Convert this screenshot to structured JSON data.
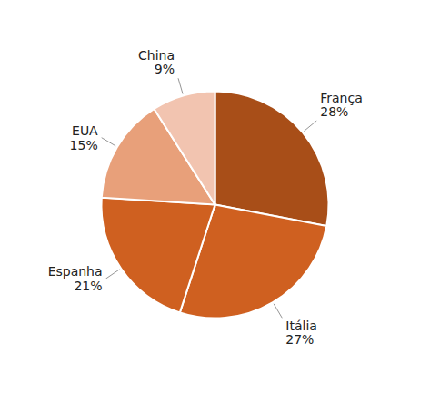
{
  "chart_data": {
    "type": "pie",
    "categories": [
      "França",
      "Itália",
      "Espanha",
      "EUA",
      "China"
    ],
    "values": [
      28,
      27,
      21,
      15,
      9
    ],
    "value_labels": [
      "28%",
      "27%",
      "21%",
      "15%",
      "9%"
    ],
    "colors": [
      "#A84E18",
      "#CF6020",
      "#CF6020",
      "#E8A07A",
      "#F2C4B0"
    ],
    "data_labels": true
  }
}
